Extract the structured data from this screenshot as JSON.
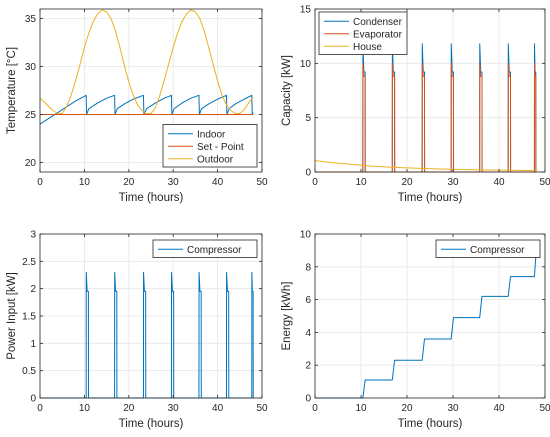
{
  "colors": {
    "blue": "#0072BD",
    "orange": "#D95319",
    "yellow": "#EDB120",
    "grid": "#e6e6e6",
    "axis": "#262626"
  },
  "chart_data": [
    {
      "id": "temperature",
      "type": "line",
      "xlabel": "Time (hours)",
      "ylabel": "Temperature [°C]",
      "xlim": [
        0,
        50
      ],
      "ylim": [
        19,
        36
      ],
      "xticks": [
        0,
        10,
        20,
        30,
        40,
        50
      ],
      "yticks": [
        20,
        25,
        30,
        35
      ],
      "grid": true,
      "legend": {
        "placement": "bottom-right",
        "entries": [
          "Indoor",
          "Set - Point",
          "Outdoor"
        ]
      },
      "series": [
        {
          "name": "Indoor",
          "color": "blue",
          "x": [
            0,
            2,
            4,
            6,
            8,
            10.4,
            10.5,
            11,
            13,
            15,
            16.8,
            16.9,
            17.4,
            19,
            21,
            23.3,
            23.4,
            24,
            26,
            28,
            29.6,
            29.7,
            30.2,
            32,
            34,
            35.8,
            35.9,
            36.4,
            38,
            40,
            42,
            42.1,
            42.6,
            44,
            46,
            47.7,
            47.8,
            48
          ],
          "y": [
            24,
            24.6,
            25.2,
            25.8,
            26.4,
            27,
            25,
            25.6,
            26.2,
            26.7,
            27,
            25,
            25.6,
            26.1,
            26.6,
            27,
            25,
            25.6,
            26.2,
            26.7,
            27,
            25,
            25.6,
            26.2,
            26.7,
            27,
            25,
            25.6,
            26.1,
            26.6,
            27,
            25,
            25.6,
            26.1,
            26.6,
            27,
            25,
            25.2
          ]
        },
        {
          "name": "Set - Point",
          "color": "orange",
          "x": [
            0,
            48
          ],
          "y": [
            25,
            25
          ]
        },
        {
          "name": "Outdoor",
          "color": "yellow",
          "x": [
            0,
            1,
            2,
            3,
            4,
            5,
            6,
            7,
            8,
            9,
            10,
            11,
            12,
            13,
            14,
            15,
            16,
            17,
            18,
            19,
            20,
            21,
            22,
            23,
            24,
            25,
            26,
            27,
            28,
            29,
            30,
            31,
            32,
            33,
            34,
            35,
            36,
            37,
            38,
            39,
            40,
            41,
            42,
            43,
            44,
            45,
            46,
            47,
            48
          ],
          "y": [
            26.7,
            26.3,
            25.8,
            25.4,
            25.1,
            25.1,
            25.8,
            27.0,
            28.5,
            30.2,
            32.0,
            33.5,
            34.7,
            35.5,
            35.9,
            35.7,
            35.0,
            33.7,
            32.0,
            30.1,
            28.4,
            27.0,
            26.0,
            25.4,
            25.1,
            25.1,
            25.7,
            27.0,
            28.6,
            30.3,
            32.0,
            33.5,
            34.7,
            35.5,
            35.9,
            35.7,
            35.0,
            33.7,
            32.0,
            30.2,
            28.5,
            27.0,
            26.0,
            25.4,
            25.1,
            25.1,
            25.5,
            26.2,
            26.8
          ]
        }
      ]
    },
    {
      "id": "capacity",
      "type": "line",
      "xlabel": "Time (hours)",
      "ylabel": "Capacity [kW]",
      "xlim": [
        0,
        50
      ],
      "ylim": [
        0,
        15
      ],
      "xticks": [
        0,
        10,
        20,
        30,
        40,
        50
      ],
      "yticks": [
        0,
        5,
        10,
        15
      ],
      "grid": true,
      "legend": {
        "placement": "top-left",
        "entries": [
          "Condenser",
          "Evaporator",
          "House"
        ]
      },
      "cycle_on_times": [
        10.4,
        16.8,
        23.3,
        29.6,
        35.8,
        42.0,
        47.7
      ],
      "cycle_off_times": [
        10.9,
        17.3,
        23.8,
        30.1,
        36.3,
        42.5,
        48.0
      ],
      "series": [
        {
          "name": "Condenser",
          "color": "blue",
          "peak": 11.8,
          "after_peak": 9.2
        },
        {
          "name": "Evaporator",
          "color": "orange",
          "peak": 10.0,
          "after_peak": 8.8
        },
        {
          "name": "House",
          "color": "yellow",
          "x": [
            0,
            4,
            8,
            12,
            16,
            20,
            24,
            28,
            32,
            36,
            40,
            44,
            48
          ],
          "y": [
            1.05,
            0.85,
            0.7,
            0.55,
            0.45,
            0.38,
            0.32,
            0.27,
            0.23,
            0.2,
            0.17,
            0.15,
            0.13
          ]
        }
      ]
    },
    {
      "id": "power",
      "type": "line",
      "xlabel": "Time (hours)",
      "ylabel": "Power Input [kW]",
      "xlim": [
        0,
        50
      ],
      "ylim": [
        0,
        3
      ],
      "xticks": [
        0,
        10,
        20,
        30,
        40,
        50
      ],
      "yticks": [
        0,
        0.5,
        1,
        1.5,
        2,
        2.5,
        3
      ],
      "ytick_labels": [
        "0",
        "0.5",
        "1",
        "1.5",
        "2",
        "2.5",
        "3"
      ],
      "grid": true,
      "legend": {
        "placement": "top-right",
        "entries": [
          "Compressor"
        ]
      },
      "cycle_on_times": [
        10.4,
        16.8,
        23.3,
        29.6,
        35.8,
        42.0,
        47.7
      ],
      "cycle_off_times": [
        10.9,
        17.3,
        23.8,
        30.1,
        36.3,
        42.5,
        48.0
      ],
      "series": [
        {
          "name": "Compressor",
          "color": "blue",
          "peak": 2.3,
          "after_peak": 1.95
        }
      ]
    },
    {
      "id": "energy",
      "type": "line",
      "xlabel": "Time (hours)",
      "ylabel": "Energy [kWh]",
      "xlim": [
        0,
        50
      ],
      "ylim": [
        0,
        10
      ],
      "xticks": [
        0,
        10,
        20,
        30,
        40,
        50
      ],
      "yticks": [
        0,
        2,
        4,
        6,
        8,
        10
      ],
      "grid": true,
      "legend": {
        "placement": "top-right",
        "entries": [
          "Compressor"
        ]
      },
      "series": [
        {
          "name": "Compressor",
          "color": "blue",
          "x": [
            0,
            10.4,
            10.9,
            16.8,
            17.3,
            23.3,
            23.8,
            29.6,
            30.1,
            35.8,
            36.3,
            42.0,
            42.5,
            47.7,
            48.0
          ],
          "y": [
            0,
            0,
            1.1,
            1.1,
            2.3,
            2.3,
            3.6,
            3.6,
            4.9,
            4.9,
            6.2,
            6.2,
            7.4,
            7.4,
            8.6
          ]
        }
      ]
    }
  ]
}
